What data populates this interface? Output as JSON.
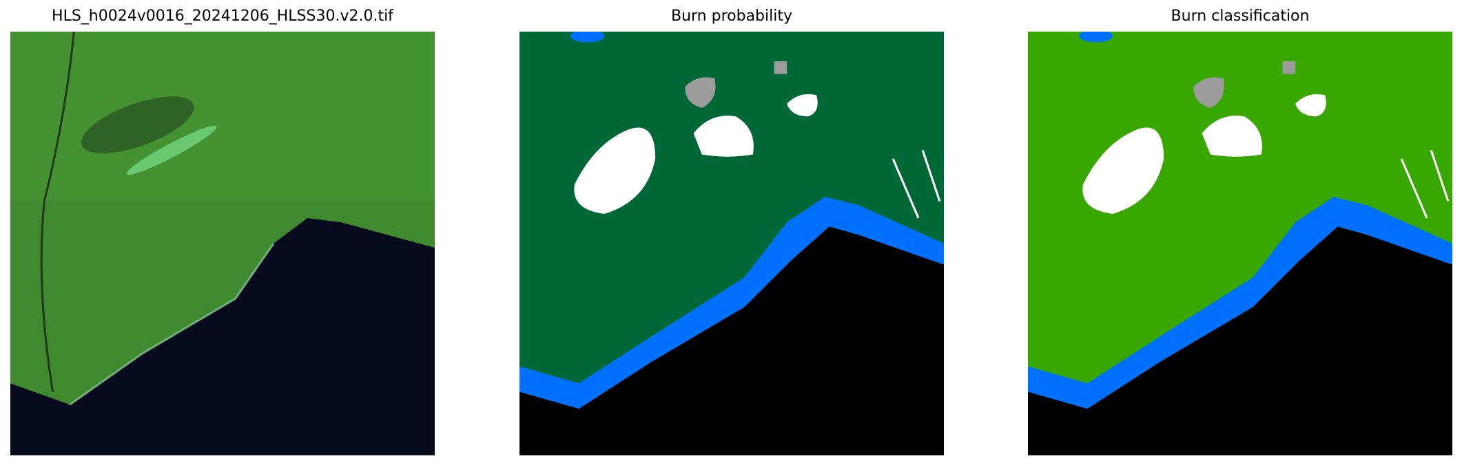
{
  "panels": [
    {
      "title": "HLS_h0024v0016_20241206_HLSS30.v2.0.tif",
      "kind": "rgb-satellite"
    },
    {
      "title": "Burn probability",
      "kind": "probability-map"
    },
    {
      "title": "Burn classification",
      "kind": "classification-map"
    }
  ],
  "colors": {
    "satellite_land": "#3f8a2e",
    "satellite_sea": "#060a1c",
    "probability_land": "#006837",
    "classification_land": "#38a800",
    "water": "#0070ff",
    "burned": "#ffffff",
    "nodata_gray": "#9c9c9c",
    "background": "#000000"
  }
}
